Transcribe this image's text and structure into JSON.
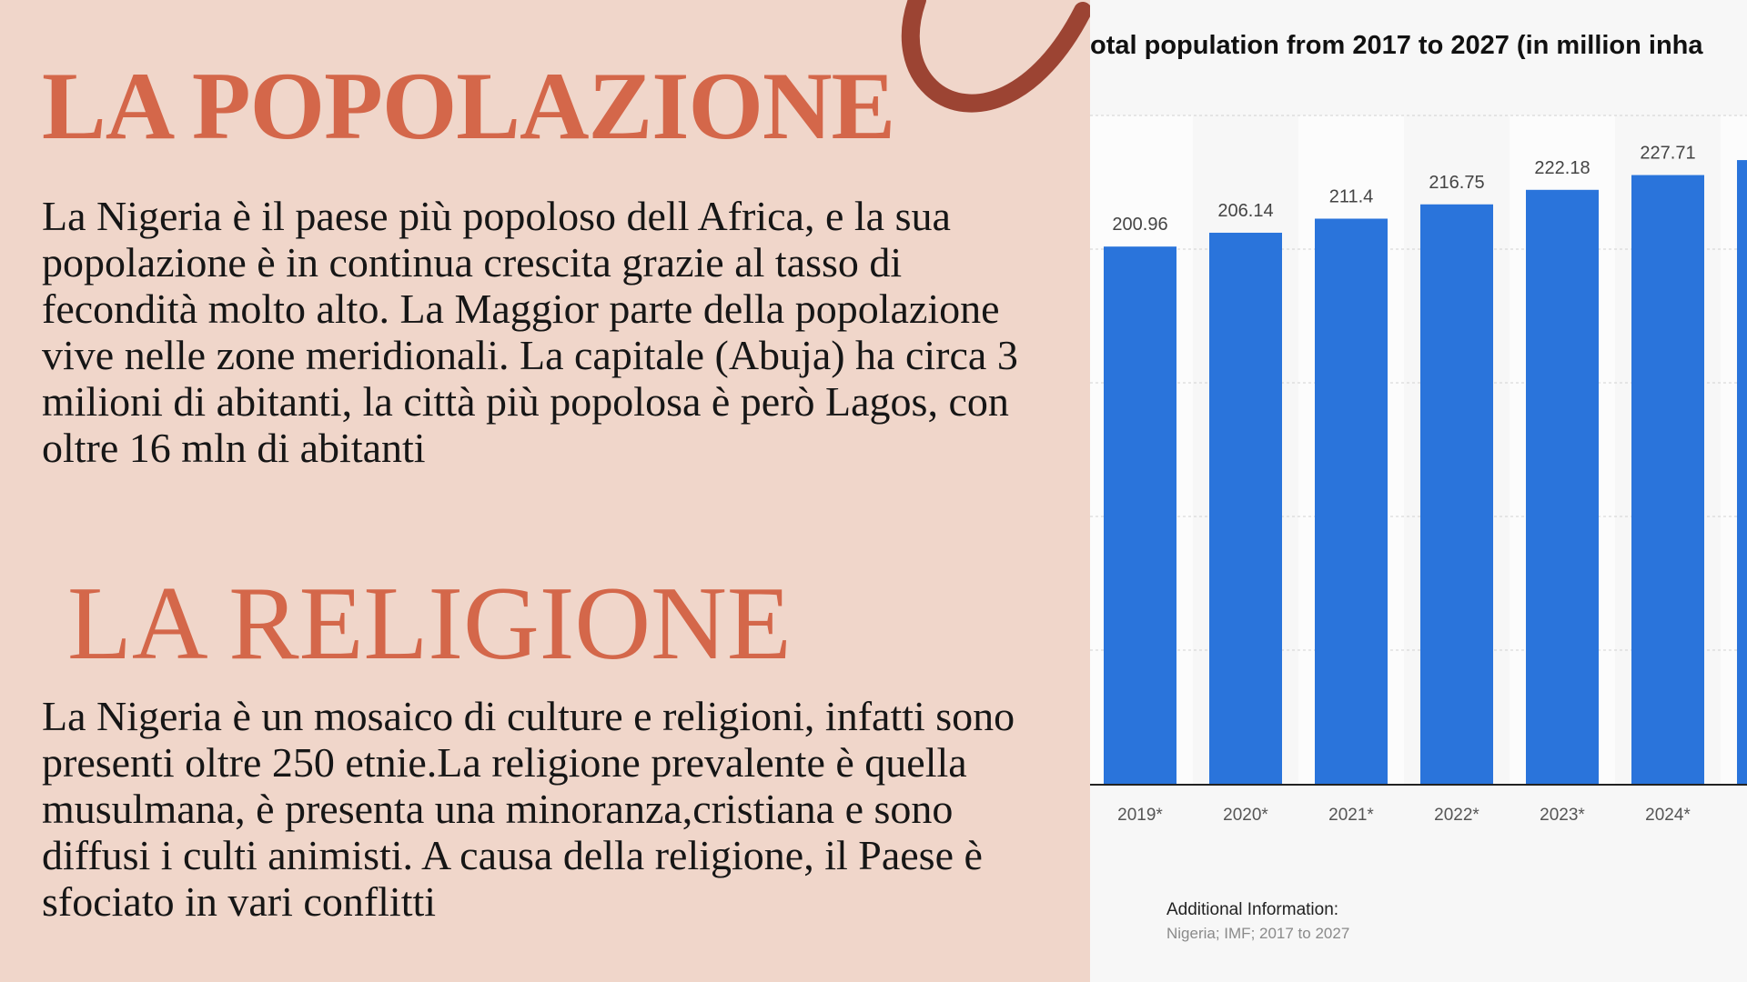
{
  "populazione": {
    "title": "LA POPOLAZIONE",
    "text": "La Nigeria è il paese più popoloso dell Africa, e la sua popolazione è in continua crescita grazie al tasso di fecondità molto alto. La Maggior parte della popolazione vive nelle zone meridionali. La capitale (Abuja) ha circa 3 milioni di abitanti, la città più popolosa è però Lagos, con oltre 16 mln di abitanti"
  },
  "religione": {
    "title": "LA RELIGIONE",
    "text": "La Nigeria è un mosaico di culture e religioni, infatti sono presenti oltre 250 etnie.La religione prevalente è quella musulmana, è presenta una minoranza,cristiana e sono diffusi i culti animisti. A causa della religione, il Paese è sfociato in vari conflitti"
  },
  "info": {
    "label": "Additional Information:",
    "source": "Nigeria; IMF; 2017 to 2027"
  },
  "colors": {
    "background": "#f0d6ca",
    "heading": "#d4674a",
    "swoosh": "#9c4433",
    "chart_background": "#f7f7f7",
    "bar": "#2a74db"
  },
  "chart_data": {
    "type": "bar",
    "title": "otal population from 2017 to 2027 (in million inha",
    "categories": [
      "2019*",
      "2020*",
      "2021*",
      "2022*",
      "2023*",
      "2024*"
    ],
    "values": [
      200.96,
      206.14,
      211.4,
      216.75,
      222.18,
      227.71
    ],
    "ylim": [
      0,
      250
    ],
    "grid": true,
    "xlabel": "",
    "ylabel": ""
  }
}
